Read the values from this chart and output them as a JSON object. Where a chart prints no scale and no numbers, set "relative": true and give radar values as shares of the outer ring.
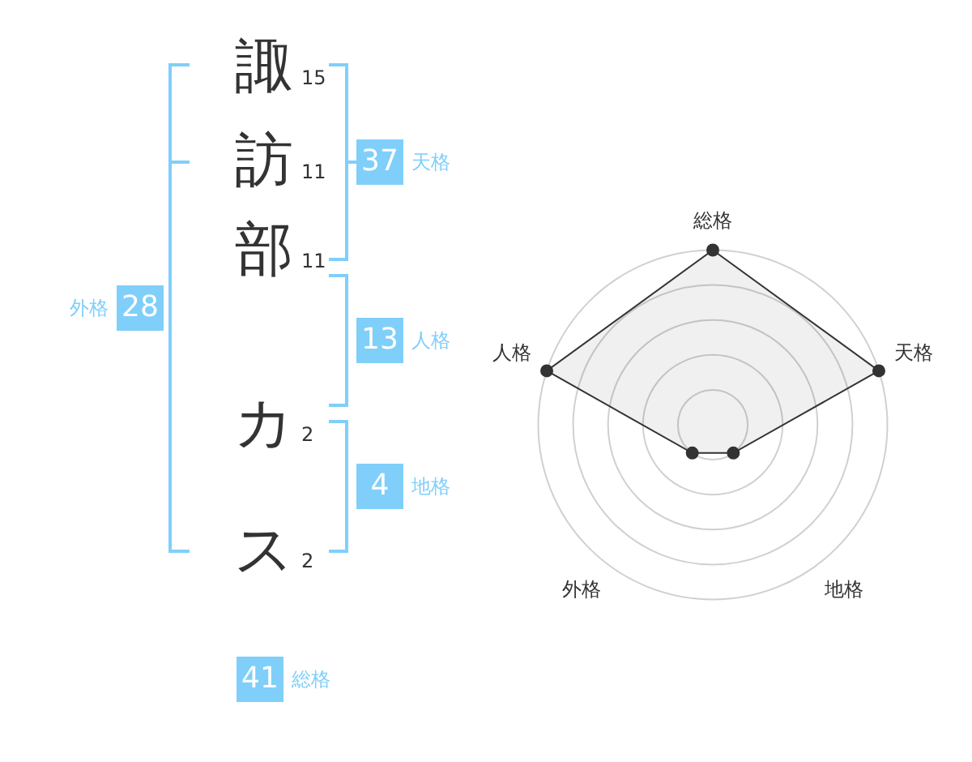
{
  "chart_data": [
    {
      "type": "other",
      "color": "#80cffa",
      "annotations": [
        "諏",
        "15",
        "訪",
        "11",
        "部",
        "11",
        "カ",
        "2",
        "ス",
        "2",
        "37",
        "天格",
        "13",
        "人格",
        "4",
        "地格",
        "28",
        "外格",
        "41",
        "総格"
      ]
    },
    {
      "type": "radar",
      "categories": [
        "総格",
        "天格",
        "地格",
        "外格",
        "人格"
      ],
      "values": [
        1,
        1,
        0.2,
        0.2,
        1
      ],
      "relative": true,
      "color": "#333333",
      "marker": "circle",
      "grid": true
    }
  ]
}
